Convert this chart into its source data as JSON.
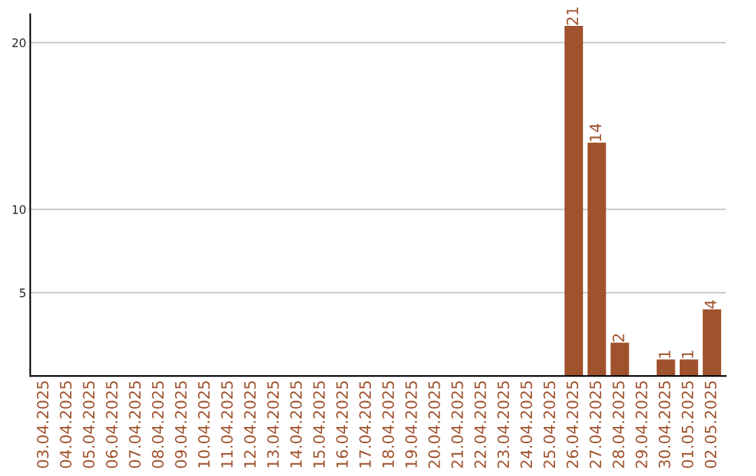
{
  "chart_data": {
    "type": "bar",
    "categories": [
      "03.04.2025",
      "04.04.2025",
      "05.04.2025",
      "06.04.2025",
      "07.04.2025",
      "08.04.2025",
      "09.04.2025",
      "10.04.2025",
      "11.04.2025",
      "12.04.2025",
      "13.04.2025",
      "14.04.2025",
      "15.04.2025",
      "16.04.2025",
      "17.04.2025",
      "18.04.2025",
      "19.04.2025",
      "20.04.2025",
      "21.04.2025",
      "22.04.2025",
      "23.04.2025",
      "24.04.2025",
      "25.04.2025",
      "26.04.2025",
      "27.04.2025",
      "28.04.2025",
      "29.04.2025",
      "30.04.2025",
      "01.05.2025",
      "02.05.2025"
    ],
    "values": [
      0,
      0,
      0,
      0,
      0,
      0,
      0,
      0,
      0,
      0,
      0,
      0,
      0,
      0,
      0,
      0,
      0,
      0,
      0,
      0,
      0,
      0,
      0,
      21,
      14,
      2,
      0,
      1,
      1,
      4
    ],
    "value_labels": [
      null,
      null,
      null,
      null,
      null,
      null,
      null,
      null,
      null,
      null,
      null,
      null,
      null,
      null,
      null,
      null,
      null,
      null,
      null,
      null,
      null,
      null,
      null,
      "21",
      "14",
      "2",
      null,
      "1",
      "1",
      "4"
    ],
    "color": "#a0522d",
    "ylim": [
      0,
      21.7
    ],
    "yticks": [
      5,
      10,
      20
    ],
    "grid": "y"
  }
}
